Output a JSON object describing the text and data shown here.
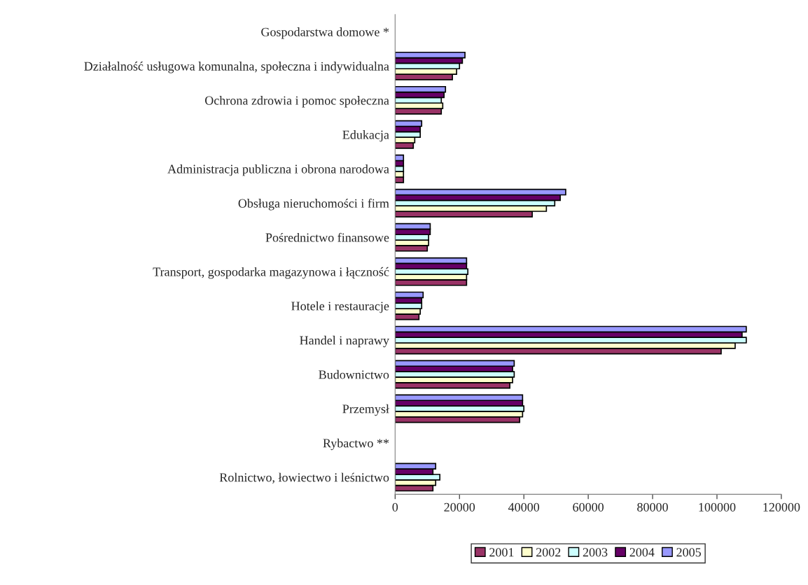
{
  "chart_data": {
    "type": "bar",
    "orientation": "horizontal",
    "categories": [
      "Gospodarstwa domowe *",
      "Działalność usługowa komunalna, społeczna i indywidualna",
      "Ochrona zdrowia i pomoc społeczna",
      "Edukacja",
      "Administracja publiczna i obrona narodowa",
      "Obsługa nieruchomości i firm",
      "Pośrednictwo finansowe",
      "Transport, gospodarka magazynowa i łączność",
      "Hotele i restauracje",
      "Handel i naprawy",
      "Budownictwo",
      "Przemysł",
      "Rybactwo **",
      "Rolnictwo, łowiectwo i leśnictwo"
    ],
    "series": [
      {
        "name": "2001",
        "color": "#993366",
        "values": [
          null,
          17800,
          14350,
          5650,
          2600,
          42600,
          10000,
          22200,
          7400,
          101300,
          35650,
          38700,
          null,
          11750
        ]
      },
      {
        "name": "2002",
        "color": "#ffffcc",
        "values": [
          null,
          19100,
          14800,
          6100,
          2600,
          47000,
          10400,
          22200,
          7800,
          105650,
          36500,
          39600,
          null,
          12600
        ]
      },
      {
        "name": "2003",
        "color": "#ccffff",
        "values": [
          null,
          20000,
          14350,
          7800,
          2600,
          49600,
          10400,
          22600,
          8250,
          109100,
          37000,
          40000,
          null,
          13900
        ]
      },
      {
        "name": "2004",
        "color": "#660066",
        "values": [
          null,
          20900,
          15200,
          7800,
          2600,
          51300,
          10900,
          22200,
          8250,
          107800,
          36500,
          39600,
          null,
          11750
        ]
      },
      {
        "name": "2005",
        "color": "#9999ff",
        "values": [
          null,
          21700,
          15650,
          8250,
          2600,
          53000,
          10900,
          22200,
          8700,
          109100,
          37000,
          39600,
          null,
          12600
        ]
      }
    ],
    "xlim": [
      0,
      120000
    ],
    "xticks": [
      0,
      20000,
      40000,
      60000,
      80000,
      100000,
      120000
    ],
    "grid": false,
    "legend": "bottom"
  }
}
